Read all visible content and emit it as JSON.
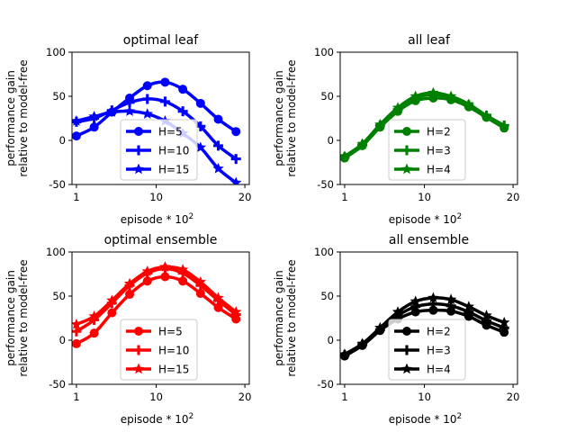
{
  "chart_data": [
    {
      "type": "line",
      "title": "optimal leaf",
      "xlabel": "episode * 10",
      "xlabel_exp": "2",
      "ylabel_line1": "performance gain",
      "ylabel_line2": "relative to model-free",
      "xlim": [
        0.5,
        20.5
      ],
      "ylim": [
        -50,
        100
      ],
      "xticks": [
        1,
        10,
        20
      ],
      "yticks": [
        -50,
        0,
        50,
        100
      ],
      "legend_position": "lower-center",
      "color": "#0000ff",
      "x": [
        1,
        3,
        5,
        7,
        9,
        11,
        13,
        15,
        17,
        19
      ],
      "series": [
        {
          "name": "H=5",
          "marker": "circle",
          "values": [
            5,
            15,
            32,
            48,
            62,
            66,
            58,
            42,
            24,
            10
          ]
        },
        {
          "name": "H=10",
          "marker": "plus",
          "values": [
            21,
            25,
            34,
            43,
            47,
            44,
            33,
            16,
            -6,
            -21
          ]
        },
        {
          "name": "H=15",
          "marker": "star",
          "values": [
            22,
            27,
            32,
            33,
            30,
            22,
            8,
            -8,
            -32,
            -48
          ]
        }
      ]
    },
    {
      "type": "line",
      "title": "all leaf",
      "xlabel": "episode * 10",
      "xlabel_exp": "2",
      "ylabel_line1": "performance gain",
      "ylabel_line2": "relative to model-free",
      "xlim": [
        0.5,
        20.5
      ],
      "ylim": [
        -50,
        100
      ],
      "xticks": [
        1,
        10,
        20
      ],
      "yticks": [
        -50,
        0,
        50,
        100
      ],
      "legend_position": "lower-center",
      "color": "#008000",
      "x": [
        1,
        3,
        5,
        7,
        9,
        11,
        13,
        15,
        17,
        19
      ],
      "series": [
        {
          "name": "H=2",
          "marker": "circle",
          "values": [
            -20,
            -6,
            15,
            33,
            45,
            48,
            46,
            38,
            26,
            14
          ]
        },
        {
          "name": "H=3",
          "marker": "plus",
          "values": [
            -19,
            -5,
            17,
            35,
            48,
            52,
            48,
            40,
            28,
            17
          ]
        },
        {
          "name": "H=4",
          "marker": "star",
          "values": [
            -18,
            -4,
            18,
            37,
            50,
            54,
            50,
            41,
            28,
            16
          ]
        }
      ]
    },
    {
      "type": "line",
      "title": "optimal ensemble",
      "xlabel": "episode * 10",
      "xlabel_exp": "2",
      "ylabel_line1": "performance gain",
      "ylabel_line2": "relative to model-free",
      "xlim": [
        0.5,
        20.5
      ],
      "ylim": [
        -50,
        100
      ],
      "xticks": [
        1,
        10,
        20
      ],
      "yticks": [
        -50,
        0,
        50,
        100
      ],
      "legend_position": "lower-center",
      "color": "#ff0000",
      "x": [
        1,
        3,
        5,
        7,
        9,
        11,
        13,
        15,
        17,
        19
      ],
      "series": [
        {
          "name": "H=5",
          "marker": "circle",
          "values": [
            -4,
            8,
            31,
            52,
            67,
            72,
            67,
            53,
            37,
            24
          ]
        },
        {
          "name": "H=10",
          "marker": "plus",
          "values": [
            10,
            23,
            42,
            62,
            76,
            81,
            76,
            62,
            45,
            29
          ]
        },
        {
          "name": "H=15",
          "marker": "star",
          "values": [
            18,
            27,
            45,
            64,
            78,
            83,
            80,
            66,
            48,
            32
          ]
        }
      ]
    },
    {
      "type": "line",
      "title": "all ensemble",
      "xlabel": "episode * 10",
      "xlabel_exp": "2",
      "ylabel_line1": "performance gain",
      "ylabel_line2": "relative to model-free",
      "xlim": [
        0.5,
        20.5
      ],
      "ylim": [
        -50,
        100
      ],
      "xticks": [
        1,
        10,
        20
      ],
      "yticks": [
        -50,
        0,
        50,
        100
      ],
      "legend_position": "lower-center",
      "color": "#000000",
      "x": [
        1,
        3,
        5,
        7,
        9,
        11,
        13,
        15,
        17,
        19
      ],
      "series": [
        {
          "name": "H=2",
          "marker": "circle",
          "values": [
            -18,
            -6,
            11,
            24,
            32,
            34,
            33,
            27,
            17,
            9
          ]
        },
        {
          "name": "H=3",
          "marker": "plus",
          "values": [
            -17,
            -5,
            12,
            28,
            38,
            41,
            39,
            32,
            22,
            14
          ]
        },
        {
          "name": "H=4",
          "marker": "star",
          "values": [
            -16,
            -4,
            14,
            32,
            44,
            48,
            46,
            38,
            28,
            20
          ]
        }
      ]
    }
  ]
}
